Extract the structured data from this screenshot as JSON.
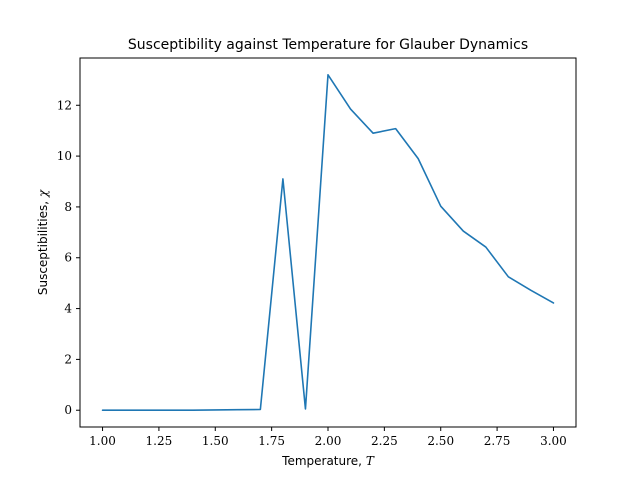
{
  "chart_data": {
    "type": "line",
    "title": "Susceptibility against Temperature for Glauber Dynamics",
    "xlabel": "Temperature, T",
    "ylabel": "Susceptibilities, χ",
    "xlim": [
      0.9,
      3.1
    ],
    "ylim": [
      -0.66,
      13.86
    ],
    "xticks": [
      1.0,
      1.25,
      1.5,
      1.75,
      2.0,
      2.25,
      2.5,
      2.75,
      3.0
    ],
    "xtick_labels": [
      "1.00",
      "1.25",
      "1.50",
      "1.75",
      "2.00",
      "2.25",
      "2.50",
      "2.75",
      "3.00"
    ],
    "yticks": [
      0,
      2,
      4,
      6,
      8,
      10,
      12
    ],
    "ytick_labels": [
      "0",
      "2",
      "4",
      "6",
      "8",
      "10",
      "12"
    ],
    "grid": false,
    "series": [
      {
        "color": "#1f77b4",
        "x": [
          1.0,
          1.1,
          1.2,
          1.3,
          1.4,
          1.5,
          1.6,
          1.7,
          1.8,
          1.9,
          2.0,
          2.1,
          2.2,
          2.3,
          2.4,
          2.5,
          2.6,
          2.7,
          2.8,
          2.9,
          3.0
        ],
        "y": [
          0.0,
          0.0,
          0.0,
          0.0,
          0.0,
          0.01,
          0.02,
          0.03,
          9.1,
          0.05,
          13.2,
          11.85,
          10.9,
          11.08,
          9.9,
          8.03,
          7.05,
          6.42,
          5.25,
          4.72,
          4.22
        ]
      }
    ]
  }
}
